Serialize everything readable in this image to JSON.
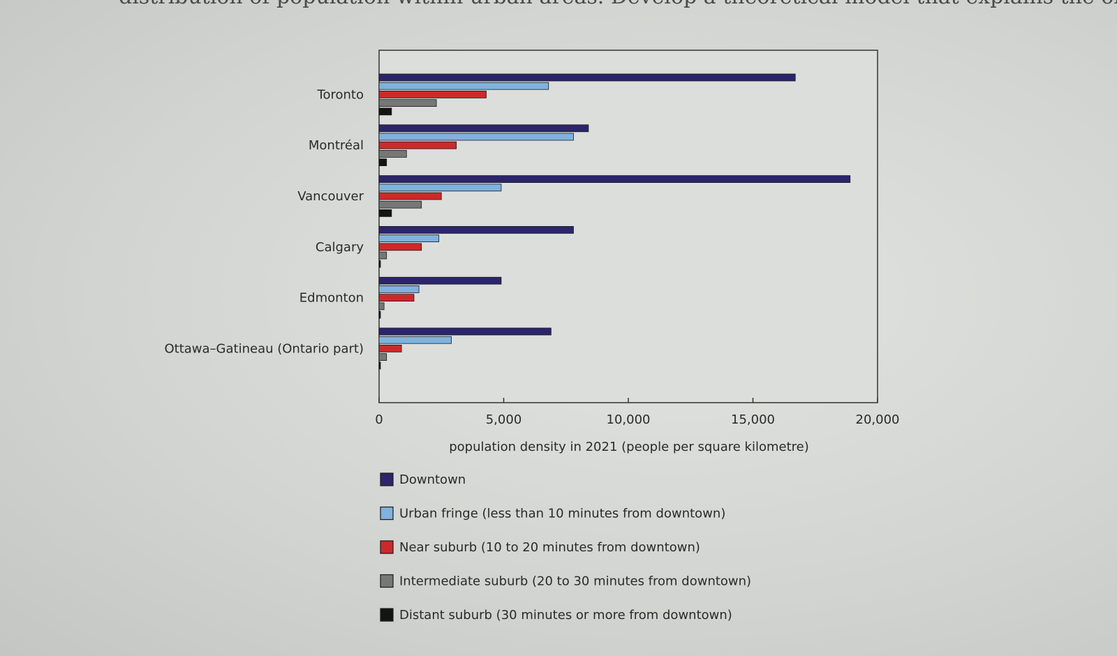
{
  "page": {
    "top_text": "distribution of population within urban areas. Develop a theoretical model that explains the observed"
  },
  "chart_data": {
    "type": "bar",
    "orientation": "horizontal",
    "title": "",
    "xlabel": "population density in 2021 (people per square kilometre)",
    "ylabel": "",
    "xlim": [
      0,
      20000
    ],
    "xticks": [
      0,
      5000,
      10000,
      15000,
      20000
    ],
    "xtick_labels": [
      "0",
      "5,000",
      "10,000",
      "15,000",
      "20,000"
    ],
    "grid": false,
    "legend_position": "bottom",
    "categories": [
      "Toronto",
      "Montréal",
      "Vancouver",
      "Calgary",
      "Edmonton",
      "Ottawa–Gatineau (Ontario part)"
    ],
    "series": [
      {
        "name": "Downtown",
        "color": "#2b2669",
        "values": [
          16700,
          8400,
          18900,
          7800,
          4900,
          6900
        ]
      },
      {
        "name": "Urban fringe (less than 10 minutes from downtown)",
        "color": "#7fb2dc",
        "values": [
          6800,
          7800,
          4900,
          2400,
          1600,
          2900
        ]
      },
      {
        "name": "Near suburb (10 to 20 minutes from downtown)",
        "color": "#cc2a2a",
        "values": [
          4300,
          3100,
          2500,
          1700,
          1400,
          900
        ]
      },
      {
        "name": "Intermediate suburb (20 to 30 minutes from downtown)",
        "color": "#777777",
        "values": [
          2300,
          1100,
          1700,
          300,
          200,
          300
        ]
      },
      {
        "name": "Distant suburb (30 minutes or more from downtown)",
        "color": "#141414",
        "values": [
          500,
          300,
          500,
          50,
          50,
          50
        ]
      }
    ]
  }
}
